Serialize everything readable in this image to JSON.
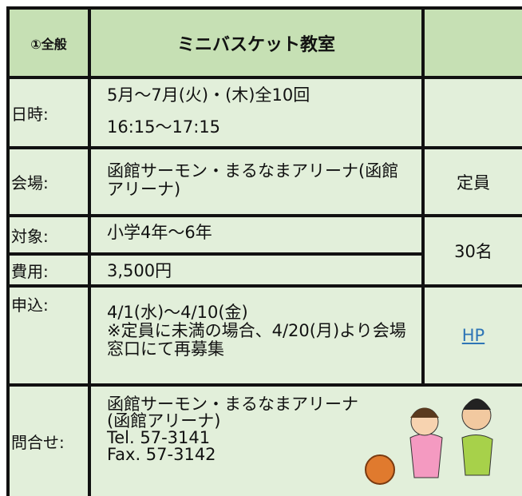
{
  "header": {
    "category": "①全般",
    "title": "ミニバスケット教室"
  },
  "rows": [
    {
      "label": "日時:",
      "lines": [
        "5月～7月(火)・(木)全10回",
        "16:15～17:15"
      ]
    },
    {
      "label": "会場:",
      "lines": [
        "函館サーモン・まるなまアリーナ(函館アリーナ)"
      ]
    },
    {
      "label": "対象:",
      "lines": [
        "小学4年～6年"
      ]
    },
    {
      "label": "費用:",
      "lines": [
        "3,500円"
      ]
    },
    {
      "label": "申込:",
      "lines": [
        "4/1(水)～4/10(金)",
        "※定員に未満の場合、4/20(月)より会場窓口にて再募集"
      ]
    },
    {
      "label": "問合せ:",
      "lines": [
        "函館サーモン・まるなまアリーナ",
        "(函館アリーナ)",
        "Tel. 57-3141",
        "Fax.  57-3142"
      ]
    }
  ],
  "capacity": {
    "label": "定員",
    "value": "30名"
  },
  "link": "HP"
}
